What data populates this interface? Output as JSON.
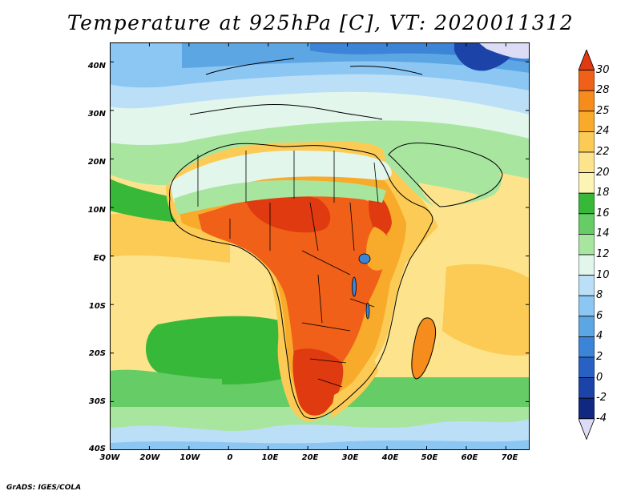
{
  "title": "Temperature at 925hPa [C], VT: 2020011312",
  "credit": "GrADS: IGES/COLA",
  "lat_labels": [
    "40N",
    "30N",
    "20N",
    "10N",
    "EQ",
    "10S",
    "20S",
    "30S",
    "40S"
  ],
  "lon_labels": [
    "30W",
    "20W",
    "10W",
    "0",
    "10E",
    "20E",
    "30E",
    "40E",
    "50E",
    "60E",
    "70E"
  ],
  "colorbar": {
    "labels": [
      "30",
      "28",
      "25",
      "24",
      "22",
      "20",
      "18",
      "16",
      "14",
      "12",
      "10",
      "8",
      "6",
      "4",
      "2",
      "0",
      "-2",
      "-4"
    ],
    "colors": [
      "#e03a10",
      "#f06018",
      "#f58c1c",
      "#f8aa2a",
      "#fccb55",
      "#fde48c",
      "#fbf4b4",
      "#38b838",
      "#66cc66",
      "#a8e6a0",
      "#e2f6ec",
      "#bcdff8",
      "#8cc6f2",
      "#5ca6e4",
      "#3c84d8",
      "#2860c4",
      "#1c44a8",
      "#102880",
      "#dcdcf6"
    ]
  },
  "map_data": {
    "lon_range": [
      -30,
      76
    ],
    "lat_range": [
      -40,
      44
    ],
    "tick_lons": [
      -30,
      -20,
      -10,
      0,
      10,
      20,
      30,
      40,
      50,
      60,
      70
    ],
    "tick_lats": [
      40,
      30,
      20,
      10,
      0,
      -10,
      -20,
      -30,
      -40
    ]
  }
}
